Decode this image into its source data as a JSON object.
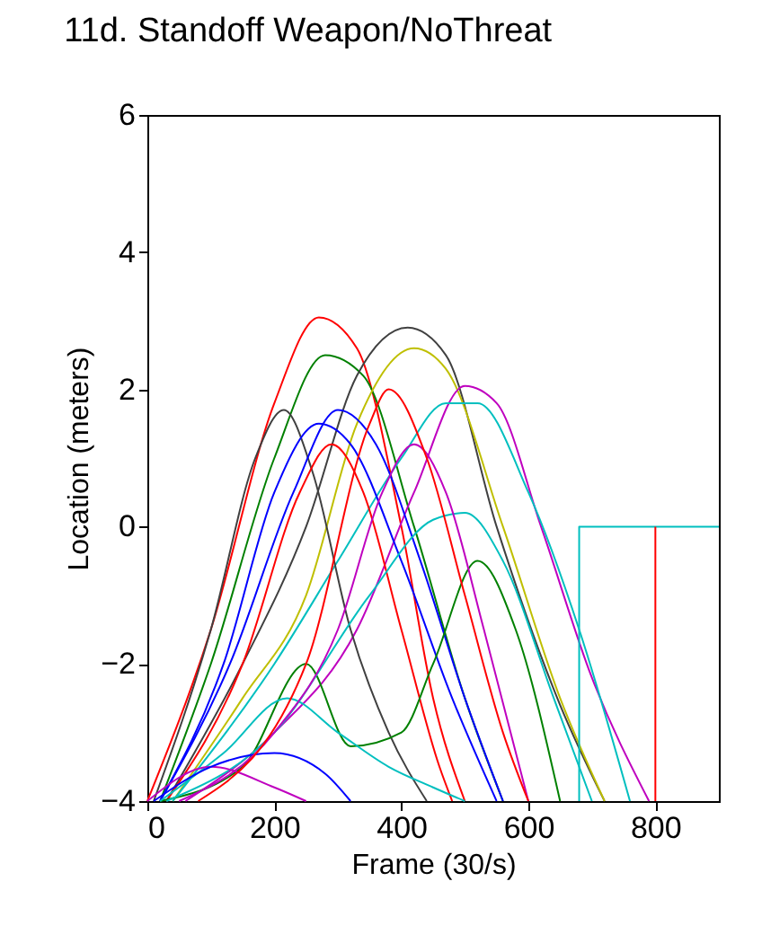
{
  "chart_data": {
    "type": "line",
    "title": "11d.  Standoff Weapon/NoThreat",
    "xlabel": "Frame (30/s)",
    "ylabel": "Location (meters)",
    "xlim": [
      0,
      900
    ],
    "xticks": [
      0,
      200,
      400,
      600,
      800
    ],
    "ylim": [
      -4,
      6
    ],
    "yticks": [
      -4,
      -2,
      0,
      2,
      4,
      6
    ],
    "series": [
      {
        "color": "#ff0000",
        "x": [
          0,
          100,
          200,
          270,
          330,
          400,
          450,
          500
        ],
        "values": [
          -4,
          -1.5,
          1.8,
          3.05,
          2.6,
          0,
          -2.5,
          -4
        ]
      },
      {
        "color": "#008000",
        "x": [
          20,
          100,
          200,
          280,
          340,
          420,
          500,
          560
        ],
        "values": [
          -4,
          -2,
          1,
          2.5,
          2.2,
          0,
          -2.5,
          -4
        ]
      },
      {
        "color": "#404040",
        "x": [
          30,
          150,
          250,
          330,
          410,
          470,
          550,
          650,
          720
        ],
        "values": [
          -4,
          -2,
          0,
          2.2,
          2.9,
          2.5,
          0,
          -2.6,
          -4
        ]
      },
      {
        "color": "#bfbf00",
        "x": [
          40,
          150,
          250,
          330,
          420,
          470,
          560,
          650,
          720
        ],
        "values": [
          -4,
          -2.5,
          -1,
          1.5,
          2.6,
          2.3,
          0,
          -2.5,
          -4
        ]
      },
      {
        "color": "#bf00bf",
        "x": [
          60,
          200,
          330,
          420,
          500,
          550,
          620,
          700,
          790
        ],
        "values": [
          -4,
          -3,
          -1.5,
          0.5,
          2.05,
          1.8,
          0,
          -2.2,
          -4
        ]
      },
      {
        "color": "#00bfbf",
        "x": [
          40,
          200,
          300,
          400,
          470,
          520,
          600,
          680,
          760
        ],
        "values": [
          -4,
          -2,
          -0.5,
          1,
          1.8,
          1.8,
          0.5,
          -1.5,
          -4
        ]
      },
      {
        "color": "#404040",
        "x": [
          10,
          100,
          170,
          215,
          260,
          320,
          380,
          440
        ],
        "values": [
          -4,
          -1.5,
          1,
          1.7,
          0.8,
          -1.5,
          -3,
          -4
        ]
      },
      {
        "color": "#0000ff",
        "x": [
          20,
          120,
          200,
          270,
          320,
          400,
          480,
          550
        ],
        "values": [
          -4,
          -2,
          0.5,
          1.5,
          1.2,
          -0.5,
          -2.5,
          -4
        ]
      },
      {
        "color": "#0000ff",
        "x": [
          20,
          130,
          230,
          300,
          360,
          430,
          500,
          560
        ],
        "values": [
          -4,
          -2,
          0.5,
          1.7,
          1.2,
          -0.5,
          -2.5,
          -4
        ]
      },
      {
        "color": "#ff0000",
        "x": [
          30,
          150,
          240,
          290,
          340,
          400,
          460,
          480
        ],
        "values": [
          -4,
          -2,
          0.5,
          1.2,
          0.5,
          -1.5,
          -3.5,
          -4
        ]
      },
      {
        "color": "#008000",
        "x": [
          20,
          150,
          250,
          320,
          400,
          450,
          520,
          580,
          650
        ],
        "values": [
          -4,
          -3.5,
          -2,
          -3.2,
          -3,
          -2,
          -0.5,
          -1.5,
          -4
        ]
      },
      {
        "color": "#00bfbf",
        "x": [
          20,
          120,
          220,
          300,
          380,
          450,
          500
        ],
        "values": [
          -4,
          -3.3,
          -2.5,
          -3,
          -3.5,
          -3.8,
          -4
        ]
      },
      {
        "color": "#00bfbf",
        "x": [
          30,
          200,
          350,
          450,
          500,
          560,
          640,
          700
        ],
        "values": [
          -4,
          -3,
          -1,
          0.1,
          0.2,
          -0.5,
          -2.5,
          -4
        ]
      },
      {
        "color": "#bf00bf",
        "x": [
          0,
          100,
          200,
          250
        ],
        "values": [
          -4,
          -3.5,
          -3.8,
          -4
        ]
      },
      {
        "color": "#0000ff",
        "x": [
          10,
          100,
          200,
          280,
          320
        ],
        "values": [
          -4,
          -3.5,
          -3.3,
          -3.6,
          -4
        ]
      },
      {
        "color": "#bf00bf",
        "x": [
          50,
          200,
          300,
          370,
          420,
          470,
          530,
          600
        ],
        "values": [
          -4,
          -3,
          -1.5,
          0.5,
          1.2,
          0.5,
          -1.5,
          -4
        ]
      },
      {
        "color": "#ff0000",
        "x": [
          80,
          250,
          350,
          380,
          440,
          500,
          560,
          600
        ],
        "values": [
          -4,
          -2,
          1.5,
          2,
          1,
          -1,
          -3,
          -4
        ]
      },
      {
        "color": "#00bfbf",
        "x": [
          680,
          680,
          900
        ],
        "values": [
          -4,
          0,
          0
        ]
      },
      {
        "color": "#ff0000",
        "x": [
          800,
          800
        ],
        "values": [
          0,
          -4
        ]
      }
    ]
  }
}
